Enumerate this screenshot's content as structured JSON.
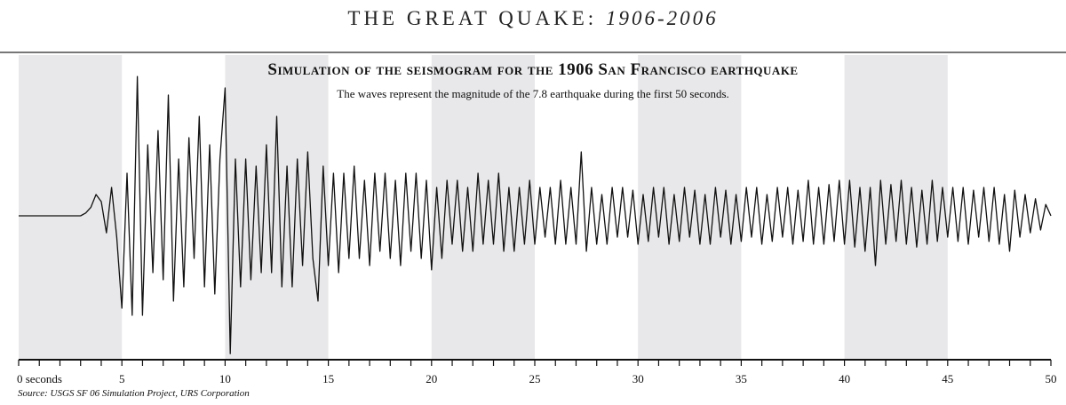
{
  "header": {
    "title_main": "THE GREAT QUAKE: ",
    "title_years": "1906-2006"
  },
  "chart_data": {
    "type": "line",
    "title": "Simulation of the seismogram for the 1906 San Francisco earthquake",
    "subtitle": "The waves represent the magnitude of the 7.8 earthquake during the first 50 seconds.",
    "xlabel": "seconds",
    "xlim": [
      0,
      50
    ],
    "x_ticks": [
      0,
      5,
      10,
      15,
      20,
      25,
      30,
      35,
      40,
      45,
      50
    ],
    "x_tick_labels": [
      "0 seconds",
      "5",
      "10",
      "15",
      "20",
      "25",
      "30",
      "35",
      "40",
      "45",
      "50"
    ],
    "minor_tick_step": 1,
    "shaded_bands": [
      [
        0,
        5
      ],
      [
        10,
        15
      ],
      [
        20,
        25
      ],
      [
        30,
        35
      ],
      [
        40,
        45
      ]
    ],
    "band_color": "#e8e8ea",
    "line_color": "#111111",
    "y_axis_shown": false,
    "x_step": 0.25,
    "values": [
      0,
      0,
      0,
      0,
      0,
      0,
      0,
      0,
      0,
      0,
      0,
      0,
      0,
      0.02,
      0.06,
      0.15,
      0.1,
      -0.12,
      0.2,
      -0.15,
      -0.65,
      0.3,
      -0.7,
      0.98,
      -0.7,
      0.5,
      -0.4,
      0.6,
      -0.45,
      0.85,
      -0.6,
      0.4,
      -0.5,
      0.55,
      -0.3,
      0.7,
      -0.5,
      0.5,
      -0.55,
      0.4,
      0.9,
      -0.97,
      0.4,
      -0.5,
      0.4,
      -0.45,
      0.35,
      -0.4,
      0.5,
      -0.4,
      0.7,
      -0.5,
      0.35,
      -0.5,
      0.4,
      -0.35,
      0.45,
      -0.3,
      -0.6,
      0.35,
      -0.35,
      0.3,
      -0.4,
      0.3,
      -0.3,
      0.35,
      -0.3,
      0.25,
      -0.35,
      0.3,
      -0.25,
      0.3,
      -0.3,
      0.25,
      -0.35,
      0.3,
      -0.25,
      0.3,
      -0.3,
      0.25,
      -0.38,
      0.2,
      -0.3,
      0.25,
      -0.2,
      0.25,
      -0.25,
      0.2,
      -0.25,
      0.3,
      -0.2,
      0.25,
      -0.2,
      0.3,
      -0.25,
      0.2,
      -0.25,
      0.2,
      -0.2,
      0.25,
      -0.2,
      0.2,
      -0.15,
      0.2,
      -0.2,
      0.25,
      -0.2,
      0.2,
      -0.2,
      0.45,
      -0.25,
      0.2,
      -0.2,
      0.15,
      -0.2,
      0.2,
      -0.15,
      0.2,
      -0.15,
      0.18,
      -0.2,
      0.15,
      -0.18,
      0.2,
      -0.15,
      0.2,
      -0.2,
      0.15,
      -0.18,
      0.2,
      -0.15,
      0.18,
      -0.2,
      0.15,
      -0.2,
      0.2,
      -0.15,
      0.18,
      -0.2,
      0.15,
      -0.18,
      0.2,
      -0.15,
      0.2,
      -0.2,
      0.15,
      -0.18,
      0.2,
      -0.15,
      0.2,
      -0.2,
      0.18,
      -0.18,
      0.25,
      -0.2,
      0.2,
      -0.2,
      0.22,
      -0.18,
      0.25,
      -0.2,
      0.25,
      -0.22,
      0.2,
      -0.25,
      0.2,
      -0.35,
      0.25,
      -0.2,
      0.22,
      -0.18,
      0.25,
      -0.2,
      0.2,
      -0.22,
      0.18,
      -0.2,
      0.25,
      -0.18,
      0.2,
      -0.15,
      0.2,
      -0.18,
      0.2,
      -0.2,
      0.18,
      -0.15,
      0.2,
      -0.18,
      0.2,
      -0.2,
      0.15,
      -0.25,
      0.18,
      -0.15,
      0.15,
      -0.12,
      0.12,
      -0.1,
      0.08,
      0
    ]
  },
  "source": "Source: USGS SF 06 Simulation Project, URS Corporation"
}
